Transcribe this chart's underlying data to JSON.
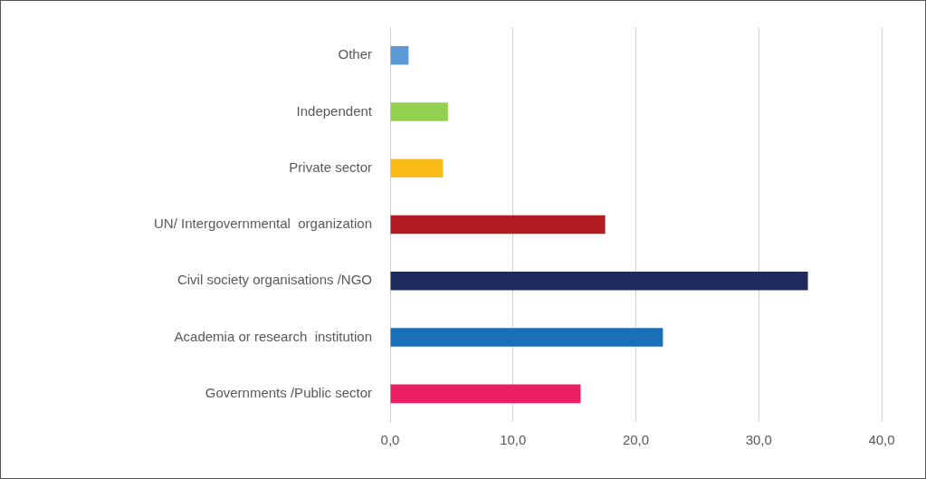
{
  "chart_data": {
    "type": "bar",
    "orientation": "horizontal",
    "categories": [
      "Other",
      "Independent",
      "Private sector",
      "UN/ Intergovernmental  organization",
      "Civil society organisations /NGO",
      "Academia or research  institution",
      "Governments /Public sector"
    ],
    "values": [
      1.5,
      4.7,
      4.3,
      17.5,
      34.0,
      22.2,
      15.5
    ],
    "colors": [
      "#5b9bd5",
      "#92d050",
      "#fbbc1a",
      "#b01c22",
      "#1f2a5c",
      "#1a6fb9",
      "#e91e63"
    ],
    "xlim": [
      0,
      40
    ],
    "xticks": [
      {
        "value": 0,
        "label": "0,0"
      },
      {
        "value": 10,
        "label": "10,0"
      },
      {
        "value": 20,
        "label": "20,0"
      },
      {
        "value": 30,
        "label": "30,0"
      },
      {
        "value": 40,
        "label": "40,0"
      }
    ],
    "grid": "x",
    "legend": false
  }
}
